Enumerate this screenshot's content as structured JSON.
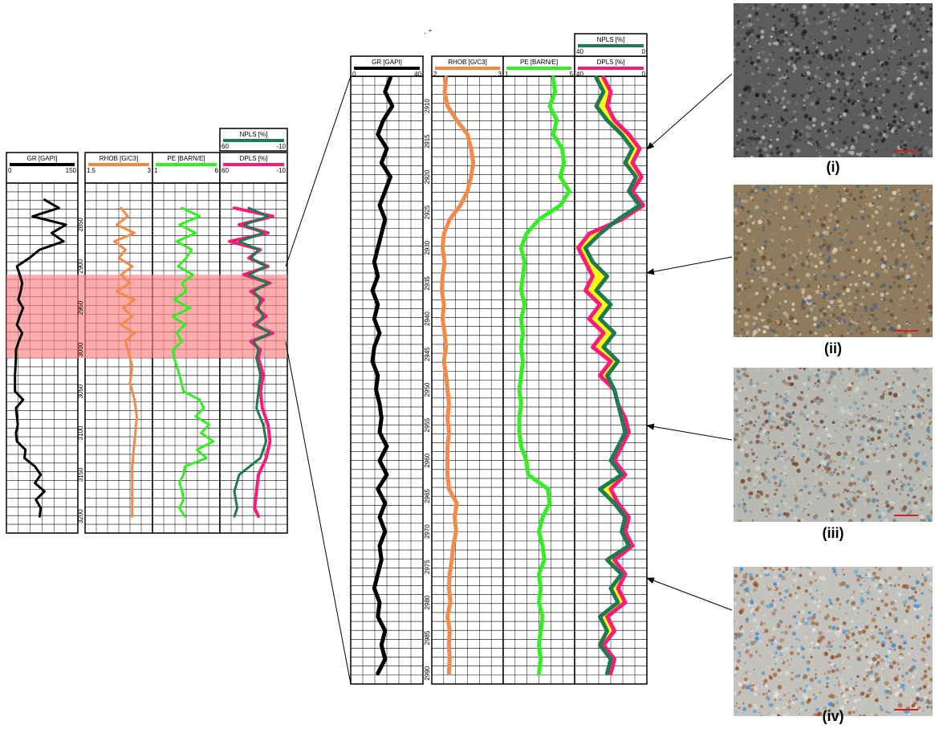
{
  "chart_data": [
    {
      "type": "line",
      "name": "full-log",
      "tracks": [
        {
          "id": "gr",
          "curves": [
            {
              "label": "GR [GAPI]",
              "color": "#000000",
              "min": "0",
              "max": "150",
              "range": [
                0,
                150
              ]
            }
          ]
        },
        {
          "id": "rhob",
          "curves": [
            {
              "label": "RHOB [G/C3]",
              "color": "#f4894a",
              "min": "1.5",
              "max": "3",
              "range": [
                1.5,
                3
              ]
            }
          ]
        },
        {
          "id": "pe",
          "curves": [
            {
              "label": "PE [BARN/E]",
              "color": "#33ee22",
              "min": "1",
              "max": "6",
              "range": [
                1,
                6
              ]
            }
          ]
        },
        {
          "id": "porosity",
          "curves": [
            {
              "label": "NPLS [%]",
              "color": "#1e7a4f",
              "min": "60",
              "max": "-10",
              "range": [
                60,
                -10
              ]
            },
            {
              "label": "DPLS [%]",
              "color": "#ff1a7a",
              "min": "60",
              "max": "-10",
              "range": [
                60,
                -10
              ]
            }
          ]
        }
      ],
      "depth_ticks": [
        "2850",
        "2900",
        "2950",
        "3000",
        "3050",
        "3100",
        "3150",
        "3200"
      ],
      "depth_range": [
        2800,
        3220
      ],
      "highlight_interval": [
        2910,
        3010
      ],
      "highlight_color": "#ff8080",
      "series": [
        {
          "name": "GR",
          "track": "gr",
          "depth": [
            2820,
            2830,
            2840,
            2850,
            2860,
            2870,
            2880,
            2890,
            2900,
            2910,
            2920,
            2930,
            2940,
            2950,
            2960,
            2970,
            2980,
            2990,
            3000,
            3010,
            3030,
            3050,
            3060,
            3070,
            3080,
            3090,
            3100,
            3110,
            3120,
            3130,
            3140,
            3150,
            3160,
            3170,
            3180,
            3190,
            3200
          ],
          "values": [
            80,
            110,
            55,
            125,
            95,
            120,
            70,
            48,
            22,
            28,
            33,
            30,
            25,
            35,
            28,
            22,
            33,
            26,
            20,
            20,
            18,
            18,
            35,
            20,
            22,
            24,
            20,
            22,
            40,
            38,
            60,
            72,
            60,
            80,
            62,
            72,
            70
          ]
        },
        {
          "name": "RHOB",
          "track": "rhob",
          "depth": [
            2830,
            2840,
            2850,
            2860,
            2870,
            2880,
            2890,
            2900,
            2910,
            2920,
            2930,
            2940,
            2950,
            2960,
            2970,
            2980,
            2990,
            3000,
            3010,
            3020,
            3040,
            3060,
            3080,
            3100,
            3120,
            3140,
            3160,
            3180,
            3200
          ],
          "values": [
            2.3,
            2.45,
            2.2,
            2.6,
            2.15,
            2.4,
            2.25,
            2.55,
            2.3,
            2.5,
            2.2,
            2.6,
            2.35,
            2.55,
            2.3,
            2.6,
            2.4,
            2.45,
            2.5,
            2.55,
            2.5,
            2.6,
            2.65,
            2.62,
            2.58,
            2.55,
            2.55,
            2.55,
            2.55
          ]
        },
        {
          "name": "PE",
          "track": "pe",
          "depth": [
            2830,
            2840,
            2850,
            2860,
            2870,
            2880,
            2890,
            2900,
            2910,
            2920,
            2930,
            2940,
            2950,
            2960,
            2970,
            2980,
            2990,
            3000,
            3010,
            3030,
            3050,
            3060,
            3070,
            3080,
            3090,
            3100,
            3110,
            3120,
            3130,
            3140,
            3150,
            3160,
            3170,
            3180,
            3190,
            3200
          ],
          "values": [
            3.2,
            4.5,
            3.0,
            4.2,
            2.8,
            3.9,
            3.5,
            2.9,
            4.0,
            3.2,
            3.5,
            2.6,
            3.8,
            2.5,
            3.4,
            2.8,
            3.2,
            2.5,
            2.6,
            3.0,
            3.3,
            4.5,
            4.8,
            4.2,
            5.2,
            4.6,
            5.5,
            4.3,
            5.0,
            3.4,
            3.3,
            3.0,
            3.2,
            3.3,
            3.0,
            3.4
          ]
        },
        {
          "name": "NPLS",
          "track": "porosity",
          "depth": [
            2830,
            2840,
            2850,
            2860,
            2870,
            2880,
            2890,
            2900,
            2910,
            2920,
            2930,
            2940,
            2950,
            2960,
            2970,
            2980,
            2990,
            3000,
            3010,
            3030,
            3050,
            3070,
            3090,
            3110,
            3130,
            3150,
            3170,
            3190,
            3200
          ],
          "values": [
            30,
            10,
            35,
            15,
            40,
            20,
            28,
            12,
            30,
            10,
            25,
            18,
            20,
            15,
            22,
            8,
            25,
            20,
            22,
            18,
            20,
            22,
            15,
            12,
            18,
            40,
            45,
            42,
            45
          ]
        },
        {
          "name": "DPLS",
          "track": "porosity",
          "depth": [
            2830,
            2840,
            2850,
            2860,
            2870,
            2880,
            2890,
            2900,
            2910,
            2920,
            2930,
            2940,
            2950,
            2960,
            2970,
            2980,
            2990,
            3000,
            3010,
            3030,
            3050,
            3070,
            3090,
            3110,
            3130,
            3150,
            3170,
            3190,
            3200
          ],
          "values": [
            45,
            5,
            40,
            10,
            50,
            18,
            30,
            10,
            35,
            8,
            28,
            15,
            22,
            12,
            25,
            5,
            28,
            18,
            20,
            15,
            18,
            16,
            10,
            8,
            12,
            20,
            22,
            24,
            20
          ]
        }
      ]
    },
    {
      "type": "line",
      "name": "zoomed-log",
      "tracks": [
        {
          "id": "gr",
          "curves": [
            {
              "label": "GR [GAPI]",
              "color": "#000000",
              "min": "0",
              "max": "40",
              "range": [
                0,
                40
              ]
            }
          ]
        },
        {
          "id": "rhob",
          "curves": [
            {
              "label": "RHOB [G/C3]",
              "color": "#f4894a",
              "min": "2",
              "max": "3",
              "range": [
                2,
                3
              ]
            }
          ]
        },
        {
          "id": "pe",
          "curves": [
            {
              "label": "PE [BARN/E]",
              "color": "#33ee22",
              "min": "1",
              "max": "5",
              "range": [
                1,
                5
              ]
            }
          ]
        },
        {
          "id": "porosity",
          "curves": [
            {
              "label": "NPLS [%]",
              "color": "#1e7a4f",
              "min": "40",
              "max": "0",
              "range": [
                40,
                0
              ]
            },
            {
              "label": "DPLS [%]",
              "color": "#ff1a7a",
              "min": "40",
              "max": "0",
              "range": [
                40,
                0
              ]
            }
          ]
        }
      ],
      "depth_ticks": [
        "2910",
        "2915",
        "2920",
        "2925",
        "2930",
        "2935",
        "2940",
        "2945",
        "2950",
        "2955",
        "2960",
        "2965",
        "2970",
        "2975",
        "2980",
        "2985",
        "2990"
      ],
      "depth_range": [
        2905.8,
        2991.5
      ],
      "crossover_fill": "#ffff00",
      "series": [
        {
          "name": "GR",
          "track": "gr",
          "depth": [
            2906,
            2908,
            2910,
            2912,
            2914,
            2916,
            2918,
            2920,
            2922,
            2924,
            2926,
            2928,
            2930,
            2932,
            2934,
            2936,
            2938,
            2940,
            2942,
            2944,
            2946,
            2948,
            2950,
            2952,
            2954,
            2956,
            2958,
            2960,
            2962,
            2964,
            2966,
            2968,
            2970,
            2972,
            2974,
            2976,
            2978,
            2980,
            2982,
            2984,
            2986,
            2988,
            2990
          ],
          "values": [
            22,
            19,
            23,
            18,
            15,
            20,
            17,
            22,
            19,
            16,
            19,
            17,
            15,
            13,
            15,
            12,
            15,
            13,
            16,
            13,
            12,
            15,
            14,
            16,
            17,
            16,
            20,
            16,
            20,
            15,
            19,
            16,
            19,
            16,
            17,
            15,
            13,
            16,
            15,
            19,
            17,
            19,
            15
          ]
        },
        {
          "name": "RHOB",
          "track": "rhob",
          "depth": [
            2906,
            2908,
            2910,
            2912,
            2914,
            2916,
            2918,
            2920,
            2922,
            2924,
            2926,
            2928,
            2930,
            2932,
            2934,
            2936,
            2938,
            2940,
            2942,
            2944,
            2946,
            2948,
            2950,
            2952,
            2954,
            2956,
            2958,
            2960,
            2962,
            2964,
            2966,
            2968,
            2970,
            2972,
            2974,
            2976,
            2978,
            2980,
            2982,
            2984,
            2986,
            2988,
            2990
          ],
          "values": [
            2.2,
            2.18,
            2.22,
            2.35,
            2.5,
            2.55,
            2.58,
            2.55,
            2.5,
            2.4,
            2.25,
            2.17,
            2.15,
            2.18,
            2.15,
            2.14,
            2.17,
            2.15,
            2.18,
            2.2,
            2.17,
            2.2,
            2.22,
            2.24,
            2.22,
            2.24,
            2.22,
            2.22,
            2.22,
            2.24,
            2.35,
            2.32,
            2.34,
            2.3,
            2.28,
            2.25,
            2.24,
            2.26,
            2.22,
            2.25,
            2.24,
            2.25,
            2.24
          ]
        },
        {
          "name": "PE",
          "track": "pe",
          "depth": [
            2906,
            2908,
            2910,
            2912,
            2914,
            2916,
            2918,
            2920,
            2922,
            2924,
            2926,
            2928,
            2930,
            2932,
            2934,
            2936,
            2938,
            2940,
            2942,
            2944,
            2946,
            2948,
            2950,
            2952,
            2954,
            2956,
            2958,
            2960,
            2962,
            2964,
            2966,
            2968,
            2970,
            2972,
            2974,
            2976,
            2978,
            2980,
            2982,
            2984,
            2986,
            2988,
            2990
          ],
          "values": [
            3.8,
            3.9,
            3.6,
            4.0,
            3.8,
            4.3,
            4.4,
            4.2,
            4.7,
            4.2,
            3.0,
            2.3,
            2.0,
            2.2,
            2.1,
            2.0,
            2.2,
            2.0,
            2.1,
            2.0,
            2.1,
            2.0,
            1.9,
            2.0,
            1.9,
            1.9,
            2.0,
            2.3,
            2.4,
            3.5,
            3.6,
            3.2,
            3.0,
            3.2,
            3.3,
            3.0,
            3.1,
            3.0,
            3.2,
            3.1,
            3.0,
            3.1,
            3.0
          ]
        },
        {
          "name": "NPLS",
          "track": "porosity",
          "depth": [
            2906,
            2908,
            2910,
            2912,
            2914,
            2916,
            2918,
            2920,
            2922,
            2924,
            2926,
            2928,
            2930,
            2932,
            2934,
            2936,
            2938,
            2940,
            2942,
            2944,
            2946,
            2948,
            2950,
            2952,
            2954,
            2956,
            2958,
            2960,
            2962,
            2964,
            2966,
            2968,
            2970,
            2972,
            2974,
            2976,
            2978,
            2980,
            2982,
            2984,
            2986,
            2988,
            2990
          ],
          "values": [
            28,
            24,
            28,
            22,
            14,
            8,
            12,
            6,
            10,
            4,
            16,
            26,
            34,
            30,
            22,
            28,
            20,
            26,
            18,
            24,
            16,
            22,
            18,
            16,
            14,
            12,
            16,
            20,
            14,
            26,
            18,
            12,
            14,
            10,
            22,
            14,
            20,
            16,
            26,
            22,
            26,
            20,
            22
          ]
        },
        {
          "name": "DPLS",
          "track": "porosity",
          "depth": [
            2906,
            2908,
            2910,
            2912,
            2914,
            2916,
            2918,
            2920,
            2922,
            2924,
            2926,
            2928,
            2930,
            2932,
            2934,
            2936,
            2938,
            2940,
            2942,
            2944,
            2946,
            2948,
            2950,
            2952,
            2954,
            2956,
            2958,
            2960,
            2962,
            2964,
            2966,
            2968,
            2970,
            2972,
            2974,
            2976,
            2978,
            2980,
            2982,
            2984,
            2986,
            2988,
            2990
          ],
          "values": [
            24,
            20,
            22,
            18,
            10,
            4,
            8,
            3,
            8,
            2,
            14,
            32,
            38,
            34,
            30,
            34,
            26,
            32,
            24,
            30,
            20,
            26,
            18,
            16,
            12,
            10,
            14,
            18,
            12,
            20,
            16,
            10,
            12,
            8,
            18,
            12,
            16,
            12,
            22,
            18,
            24,
            18,
            20
          ]
        }
      ]
    }
  ],
  "thin_sections": [
    {
      "caption": "(i)",
      "base": "#5c5c5c",
      "speckles": [
        "#2b2b2b",
        "#8a8a8a",
        "#c0c0c0",
        "#1a1a1a"
      ],
      "scale_color": "#cc2222"
    },
    {
      "caption": "(ii)",
      "base": "#8f7c5e",
      "speckles": [
        "#3e5f86",
        "#c9b48e",
        "#5e4a30",
        "#e0d8c8"
      ],
      "scale_color": "#cc2222"
    },
    {
      "caption": "(iii)",
      "base": "#b7b9b2",
      "speckles": [
        "#6b3a22",
        "#8a5a3a",
        "#5a8aa8",
        "#d8d6cc"
      ],
      "scale_color": "#cc2222"
    },
    {
      "caption": "(iv)",
      "base": "#c4c2bc",
      "speckles": [
        "#8c4a1e",
        "#a8663a",
        "#3a8ad0",
        "#e6e4de"
      ],
      "scale_color": "#cc2222"
    }
  ],
  "stray_text": "· \""
}
